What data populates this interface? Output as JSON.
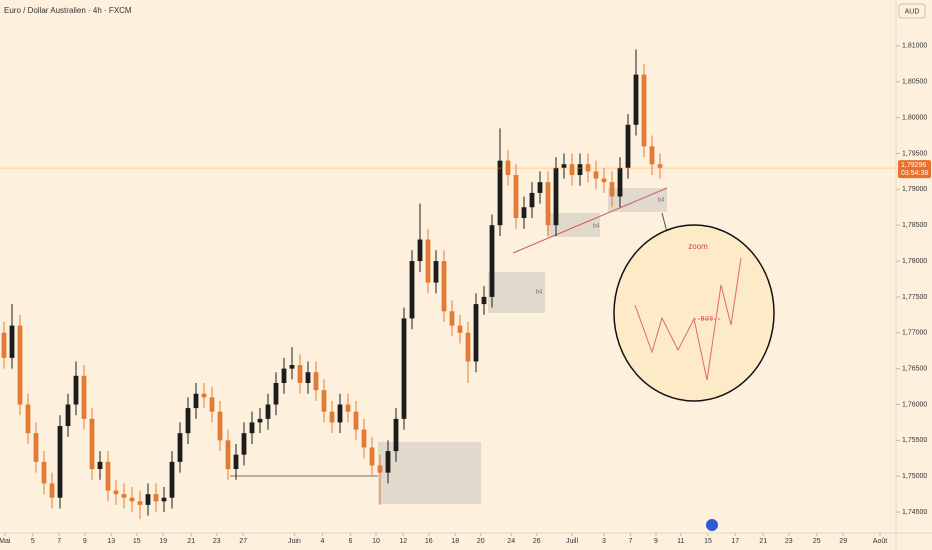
{
  "chart_data": {
    "type": "candlestick",
    "title": "Euro / Dollar Australien · 4h · FXCM",
    "currency": "AUD",
    "x": [
      0,
      1,
      2,
      3,
      4,
      5,
      6,
      7,
      8,
      9,
      10,
      11,
      12,
      13,
      14,
      15,
      16,
      17,
      18,
      19,
      20,
      21,
      22,
      23,
      24,
      25,
      26,
      27,
      28,
      29,
      30,
      31,
      32,
      33,
      34,
      35,
      36,
      37,
      38,
      39,
      40,
      41,
      42,
      43,
      44,
      45,
      46,
      47,
      48,
      49,
      50,
      51,
      52,
      53,
      54,
      55,
      56,
      57,
      58,
      59,
      60,
      61,
      62,
      63,
      64,
      65,
      66,
      67,
      68,
      69,
      70,
      71,
      72,
      73,
      74,
      75,
      76,
      77,
      78,
      79,
      80,
      81,
      82
    ],
    "open": [
      1.77,
      1.7665,
      1.771,
      1.76,
      1.756,
      1.752,
      1.749,
      1.747,
      1.757,
      1.76,
      1.764,
      1.758,
      1.751,
      1.752,
      1.748,
      1.7475,
      1.747,
      1.7465,
      1.746,
      1.7475,
      1.7465,
      1.747,
      1.752,
      1.756,
      1.7595,
      1.7615,
      1.761,
      1.759,
      1.755,
      1.751,
      1.753,
      1.756,
      1.7575,
      1.758,
      1.76,
      1.763,
      1.765,
      1.7655,
      1.763,
      1.7645,
      1.762,
      1.759,
      1.7575,
      1.76,
      1.759,
      1.7565,
      1.754,
      1.7515,
      1.7505,
      1.7535,
      1.758,
      1.772,
      1.78,
      1.783,
      1.777,
      1.78,
      1.773,
      1.771,
      1.77,
      1.766,
      1.774,
      1.775,
      1.785,
      1.794,
      1.792,
      1.786,
      1.7875,
      1.7895,
      1.791,
      1.785,
      1.793,
      1.7935,
      1.792,
      1.7935,
      1.7925,
      1.7915,
      1.791,
      1.789,
      1.793,
      1.799,
      1.806,
      1.796,
      1.7935
    ],
    "high": [
      1.7715,
      1.774,
      1.7725,
      1.7615,
      1.7575,
      1.7535,
      1.7505,
      1.7585,
      1.7615,
      1.766,
      1.7655,
      1.7595,
      1.7535,
      1.7535,
      1.7495,
      1.749,
      1.7485,
      1.748,
      1.749,
      1.749,
      1.7485,
      1.7535,
      1.7575,
      1.761,
      1.763,
      1.763,
      1.7625,
      1.7605,
      1.7565,
      1.7545,
      1.7575,
      1.759,
      1.7595,
      1.7615,
      1.7645,
      1.7665,
      1.768,
      1.767,
      1.766,
      1.766,
      1.7635,
      1.7605,
      1.7615,
      1.7615,
      1.7605,
      1.758,
      1.7555,
      1.753,
      1.755,
      1.7595,
      1.7735,
      1.7815,
      1.788,
      1.7845,
      1.7815,
      1.7815,
      1.7745,
      1.7725,
      1.7715,
      1.7755,
      1.7765,
      1.7865,
      1.7985,
      1.7955,
      1.7935,
      1.789,
      1.791,
      1.7925,
      1.7925,
      1.7945,
      1.795,
      1.795,
      1.795,
      1.795,
      1.794,
      1.793,
      1.7925,
      1.7945,
      1.8005,
      1.8095,
      1.8075,
      1.7975,
      1.795
    ],
    "low": [
      1.765,
      1.765,
      1.7585,
      1.7545,
      1.7505,
      1.7475,
      1.7455,
      1.7455,
      1.7555,
      1.7585,
      1.7565,
      1.7495,
      1.7495,
      1.7465,
      1.746,
      1.7455,
      1.745,
      1.744,
      1.7445,
      1.745,
      1.745,
      1.7455,
      1.7505,
      1.7545,
      1.758,
      1.7595,
      1.7575,
      1.7535,
      1.7495,
      1.7495,
      1.7515,
      1.7545,
      1.756,
      1.7565,
      1.7585,
      1.7615,
      1.7635,
      1.7615,
      1.7615,
      1.7605,
      1.7575,
      1.756,
      1.756,
      1.7575,
      1.755,
      1.7525,
      1.75,
      1.746,
      1.749,
      1.752,
      1.7565,
      1.7705,
      1.7785,
      1.7755,
      1.7755,
      1.7715,
      1.7695,
      1.7685,
      1.763,
      1.7645,
      1.7725,
      1.7735,
      1.7835,
      1.7905,
      1.7845,
      1.7845,
      1.786,
      1.788,
      1.7835,
      1.7835,
      1.7915,
      1.7905,
      1.7905,
      1.791,
      1.79,
      1.7895,
      1.7875,
      1.7875,
      1.7915,
      1.7975,
      1.7945,
      1.792,
      1.7915
    ],
    "close": [
      1.7665,
      1.771,
      1.76,
      1.756,
      1.752,
      1.749,
      1.747,
      1.757,
      1.76,
      1.764,
      1.758,
      1.751,
      1.752,
      1.748,
      1.7475,
      1.747,
      1.7465,
      1.746,
      1.7475,
      1.7465,
      1.747,
      1.752,
      1.756,
      1.7595,
      1.7615,
      1.761,
      1.759,
      1.755,
      1.751,
      1.753,
      1.756,
      1.7575,
      1.758,
      1.76,
      1.763,
      1.765,
      1.7655,
      1.763,
      1.7645,
      1.762,
      1.759,
      1.7575,
      1.76,
      1.759,
      1.7565,
      1.754,
      1.7515,
      1.7505,
      1.7535,
      1.758,
      1.772,
      1.78,
      1.783,
      1.777,
      1.78,
      1.773,
      1.771,
      1.77,
      1.766,
      1.774,
      1.775,
      1.785,
      1.794,
      1.792,
      1.786,
      1.7875,
      1.7895,
      1.791,
      1.785,
      1.793,
      1.7935,
      1.792,
      1.7935,
      1.7925,
      1.7915,
      1.791,
      1.789,
      1.793,
      1.799,
      1.806,
      1.796,
      1.7935,
      1.793
    ],
    "up_color": "#1c1c1c",
    "down_color": "#e07a35",
    "xlim": [
      -0.5,
      111.5
    ],
    "xticks": [
      {
        "value": 0.1,
        "label": "Mai"
      },
      {
        "value": 3.6,
        "label": "5"
      },
      {
        "value": 6.9,
        "label": "7"
      },
      {
        "value": 10.1,
        "label": "9"
      },
      {
        "value": 13.4,
        "label": "13"
      },
      {
        "value": 16.6,
        "label": "15"
      },
      {
        "value": 19.9,
        "label": "19"
      },
      {
        "value": 23.4,
        "label": "21"
      },
      {
        "value": 26.6,
        "label": "23"
      },
      {
        "value": 29.9,
        "label": "27"
      },
      {
        "value": 36.3,
        "label": "Juin"
      },
      {
        "value": 39.8,
        "label": "4"
      },
      {
        "value": 43.3,
        "label": "6"
      },
      {
        "value": 46.5,
        "label": "10"
      },
      {
        "value": 49.9,
        "label": "12"
      },
      {
        "value": 53.1,
        "label": "16"
      },
      {
        "value": 56.4,
        "label": "18"
      },
      {
        "value": 59.6,
        "label": "20"
      },
      {
        "value": 63.4,
        "label": "24"
      },
      {
        "value": 66.6,
        "label": "26"
      },
      {
        "value": 71,
        "label": "Juill"
      },
      {
        "value": 75,
        "label": "3"
      },
      {
        "value": 78.3,
        "label": "7"
      },
      {
        "value": 81.5,
        "label": "9"
      },
      {
        "value": 84.6,
        "label": "11"
      },
      {
        "value": 88,
        "label": "15"
      },
      {
        "value": 91.4,
        "label": "17"
      },
      {
        "value": 94.9,
        "label": "21"
      },
      {
        "value": 98.1,
        "label": "23"
      },
      {
        "value": 101.6,
        "label": "25"
      },
      {
        "value": 104.9,
        "label": "29"
      },
      {
        "value": 109.5,
        "label": "Août"
      }
    ],
    "ylim": [
      1.7425,
      1.8164
    ],
    "yticks": [
      {
        "value": 1.745,
        "label": "1,74500"
      },
      {
        "value": 1.75,
        "label": "1,75000"
      },
      {
        "value": 1.755,
        "label": "1,75500"
      },
      {
        "value": 1.76,
        "label": "1,76000"
      },
      {
        "value": 1.765,
        "label": "1,76500"
      },
      {
        "value": 1.77,
        "label": "1,77000"
      },
      {
        "value": 1.775,
        "label": "1,77500"
      },
      {
        "value": 1.78,
        "label": "1,78000"
      },
      {
        "value": 1.785,
        "label": "1,78500"
      },
      {
        "value": 1.79,
        "label": "1,79000"
      },
      {
        "value": 1.795,
        "label": "1,79500"
      },
      {
        "value": 1.8,
        "label": "1,80000"
      },
      {
        "value": 1.805,
        "label": "1,80500"
      },
      {
        "value": 1.81,
        "label": "1,81000"
      }
    ],
    "last_price": {
      "value": 1.79296,
      "label": "1,79296"
    },
    "countdown": "03:54:38",
    "annotations": {
      "zoom": "zoom",
      "bos": "BOS",
      "boxes": [
        "b4",
        "b4",
        "b4"
      ]
    }
  }
}
